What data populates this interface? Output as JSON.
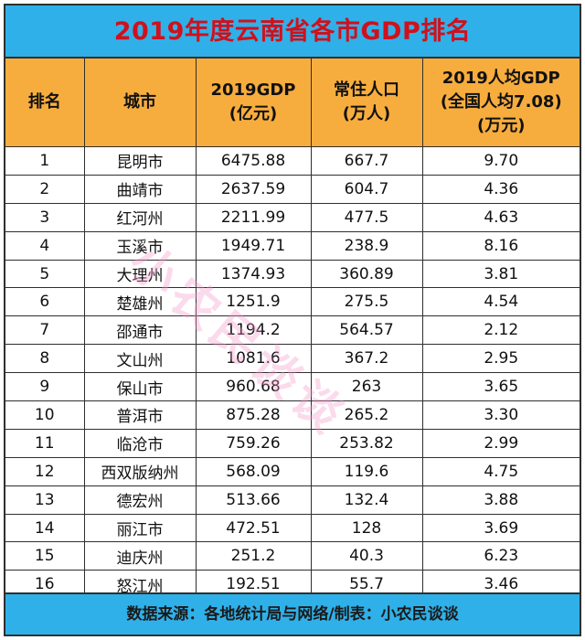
{
  "title": "2019年度云南省各市GDP排名",
  "headers": {
    "rank": "排名",
    "city": "城市",
    "gdp": "2019GDP\n(亿元)",
    "population": "常住人口\n(万人)",
    "per_capita": "2019人均GDP\n(全国人均7.08)\n(万元)"
  },
  "rows": [
    {
      "rank": "1",
      "city": "昆明市",
      "gdp": "6475.88",
      "population": "667.7",
      "per_capita": "9.70"
    },
    {
      "rank": "2",
      "city": "曲靖市",
      "gdp": "2637.59",
      "population": "604.7",
      "per_capita": "4.36"
    },
    {
      "rank": "3",
      "city": "红河州",
      "gdp": "2211.99",
      "population": "477.5",
      "per_capita": "4.63"
    },
    {
      "rank": "4",
      "city": "玉溪市",
      "gdp": "1949.71",
      "population": "238.9",
      "per_capita": "8.16"
    },
    {
      "rank": "5",
      "city": "大理州",
      "gdp": "1374.93",
      "population": "360.89",
      "per_capita": "3.81"
    },
    {
      "rank": "6",
      "city": "楚雄州",
      "gdp": "1251.9",
      "population": "275.5",
      "per_capita": "4.54"
    },
    {
      "rank": "7",
      "city": "邵通市",
      "gdp": "1194.2",
      "population": "564.57",
      "per_capita": "2.12"
    },
    {
      "rank": "8",
      "city": "文山州",
      "gdp": "1081.6",
      "population": "367.2",
      "per_capita": "2.95"
    },
    {
      "rank": "9",
      "city": "保山市",
      "gdp": "960.68",
      "population": "263",
      "per_capita": "3.65"
    },
    {
      "rank": "10",
      "city": "普洱市",
      "gdp": "875.28",
      "population": "265.2",
      "per_capita": "3.30"
    },
    {
      "rank": "11",
      "city": "临沧市",
      "gdp": "759.26",
      "population": "253.82",
      "per_capita": "2.99"
    },
    {
      "rank": "12",
      "city": "西双版纳州",
      "gdp": "568.09",
      "population": "119.6",
      "per_capita": "4.75"
    },
    {
      "rank": "13",
      "city": "德宏州",
      "gdp": "513.66",
      "population": "132.4",
      "per_capita": "3.88"
    },
    {
      "rank": "14",
      "city": "丽江市",
      "gdp": "472.51",
      "population": "128",
      "per_capita": "3.69"
    },
    {
      "rank": "15",
      "city": "迪庆州",
      "gdp": "251.2",
      "population": "40.3",
      "per_capita": "6.23"
    },
    {
      "rank": "16",
      "city": "怒江州",
      "gdp": "192.51",
      "population": "55.7",
      "per_capita": "3.46"
    }
  ],
  "footer": "数据来源：各地统计局与网络/制表：小农民谈谈",
  "watermark": "小农民谈谈",
  "colors": {
    "title_bg": "#30b0e8",
    "title_text": "#d0101c",
    "header_bg": "#f7ad3e",
    "footer_bg": "#30b0e8"
  }
}
